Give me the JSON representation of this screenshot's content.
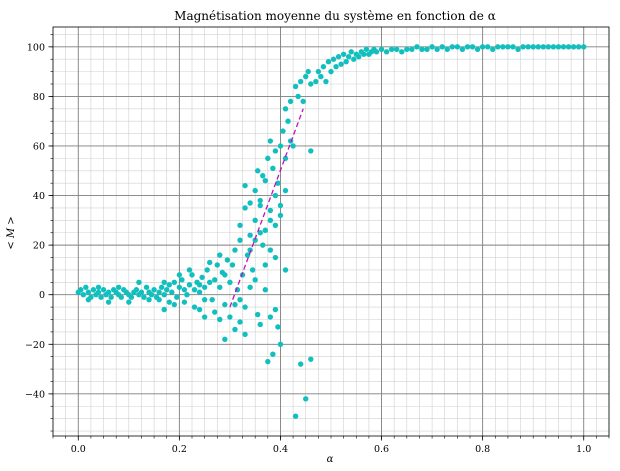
{
  "chart_data": {
    "type": "scatter",
    "title": "Magnétisation moyenne du système en fonction de α",
    "xlabel": "α",
    "ylabel": "< M >",
    "xlim": [
      -0.05,
      1.05
    ],
    "ylim": [
      -57,
      108
    ],
    "xticks": [
      0.0,
      0.2,
      0.4,
      0.6,
      0.8,
      1.0
    ],
    "xtick_labels": [
      "0.0",
      "0.2",
      "0.4",
      "0.6",
      "0.8",
      "1.0"
    ],
    "yticks": [
      -40,
      -20,
      0,
      20,
      40,
      60,
      80,
      100
    ],
    "ytick_labels": [
      "−40",
      "−20",
      "0",
      "20",
      "40",
      "60",
      "80",
      "100"
    ],
    "grid": "major and minor",
    "colors": {
      "points": "#12bfbf",
      "fit_line": "#c010c0",
      "major_grid": "#808080",
      "minor_grid": "#d0d0d0"
    },
    "series": [
      {
        "kind": "scatter",
        "color": "#12bfbf",
        "points": [
          [
            0.0,
            1
          ],
          [
            0.005,
            2
          ],
          [
            0.01,
            0
          ],
          [
            0.015,
            3
          ],
          [
            0.02,
            1
          ],
          [
            0.025,
            -1
          ],
          [
            0.03,
            2
          ],
          [
            0.035,
            0
          ],
          [
            0.04,
            1
          ],
          [
            0.045,
            -1
          ],
          [
            0.05,
            2
          ],
          [
            0.055,
            0
          ],
          [
            0.06,
            1
          ],
          [
            0.065,
            -1
          ],
          [
            0.07,
            2
          ],
          [
            0.075,
            1
          ],
          [
            0.08,
            0
          ],
          [
            0.085,
            -1
          ],
          [
            0.09,
            2
          ],
          [
            0.095,
            1
          ],
          [
            0.1,
            0
          ],
          [
            0.105,
            -1
          ],
          [
            0.11,
            1
          ],
          [
            0.115,
            2
          ],
          [
            0.12,
            0
          ],
          [
            0.125,
            1
          ],
          [
            0.13,
            -1
          ],
          [
            0.135,
            3
          ],
          [
            0.14,
            1
          ],
          [
            0.145,
            0
          ],
          [
            0.15,
            2
          ],
          [
            0.155,
            -1
          ],
          [
            0.16,
            1
          ],
          [
            0.165,
            3
          ],
          [
            0.17,
            0
          ],
          [
            0.175,
            2
          ],
          [
            0.18,
            4
          ],
          [
            0.185,
            1
          ],
          [
            0.19,
            5
          ],
          [
            0.195,
            -1
          ],
          [
            0.2,
            3
          ],
          [
            0.205,
            6
          ],
          [
            0.21,
            2
          ],
          [
            0.215,
            0
          ],
          [
            0.22,
            4
          ],
          [
            0.225,
            8
          ],
          [
            0.23,
            2
          ],
          [
            0.235,
            5
          ],
          [
            0.24,
            1
          ],
          [
            0.245,
            7
          ],
          [
            0.25,
            3
          ],
          [
            0.255,
            10
          ],
          [
            0.26,
            5
          ],
          [
            0.265,
            -2
          ],
          [
            0.27,
            6
          ],
          [
            0.275,
            12
          ],
          [
            0.28,
            3
          ],
          [
            0.285,
            9
          ],
          [
            0.29,
            -4
          ],
          [
            0.295,
            14
          ],
          [
            0.12,
            5
          ],
          [
            0.1,
            -3
          ],
          [
            0.08,
            3
          ],
          [
            0.06,
            -3
          ],
          [
            0.04,
            3
          ],
          [
            0.02,
            -2
          ],
          [
            0.14,
            -2
          ],
          [
            0.16,
            -2
          ],
          [
            0.17,
            5
          ],
          [
            0.18,
            -3
          ],
          [
            0.19,
            -4
          ],
          [
            0.2,
            8
          ],
          [
            0.21,
            -3
          ],
          [
            0.22,
            10
          ],
          [
            0.23,
            -5
          ],
          [
            0.24,
            4
          ],
          [
            0.25,
            -2
          ],
          [
            0.26,
            13
          ],
          [
            0.28,
            16
          ],
          [
            0.29,
            8
          ],
          [
            0.17,
            -6
          ],
          [
            0.24,
            -6
          ],
          [
            0.25,
            -9
          ],
          [
            0.27,
            -7
          ],
          [
            0.28,
            -10
          ],
          [
            0.29,
            -18
          ],
          [
            0.3,
            -9
          ],
          [
            0.31,
            -14
          ],
          [
            0.32,
            -11
          ],
          [
            0.33,
            -16
          ],
          [
            0.3,
            5
          ],
          [
            0.305,
            12
          ],
          [
            0.31,
            18
          ],
          [
            0.315,
            2
          ],
          [
            0.32,
            22
          ],
          [
            0.325,
            8
          ],
          [
            0.33,
            -5
          ],
          [
            0.335,
            16
          ],
          [
            0.34,
            24
          ],
          [
            0.345,
            10
          ],
          [
            0.35,
            30
          ],
          [
            0.355,
            -8
          ],
          [
            0.36,
            36
          ],
          [
            0.365,
            20
          ],
          [
            0.37,
            26
          ],
          [
            0.375,
            -27
          ],
          [
            0.38,
            34
          ],
          [
            0.385,
            -24
          ],
          [
            0.39,
            40
          ],
          [
            0.395,
            -13
          ],
          [
            0.31,
            -4
          ],
          [
            0.32,
            -2
          ],
          [
            0.34,
            3
          ],
          [
            0.35,
            6
          ],
          [
            0.36,
            -12
          ],
          [
            0.37,
            2
          ],
          [
            0.38,
            -9
          ],
          [
            0.39,
            -6
          ],
          [
            0.4,
            -20
          ],
          [
            0.41,
            10
          ],
          [
            0.355,
            50
          ],
          [
            0.365,
            48
          ],
          [
            0.375,
            55
          ],
          [
            0.38,
            62
          ],
          [
            0.385,
            51
          ],
          [
            0.39,
            58
          ],
          [
            0.395,
            45
          ],
          [
            0.4,
            60
          ],
          [
            0.405,
            66
          ],
          [
            0.41,
            75
          ],
          [
            0.415,
            70
          ],
          [
            0.42,
            78
          ],
          [
            0.425,
            60
          ],
          [
            0.43,
            84
          ],
          [
            0.435,
            80
          ],
          [
            0.44,
            86
          ],
          [
            0.445,
            78
          ],
          [
            0.45,
            88
          ],
          [
            0.455,
            90
          ],
          [
            0.46,
            85
          ],
          [
            0.43,
            -49
          ],
          [
            0.44,
            -28
          ],
          [
            0.45,
            -42
          ],
          [
            0.46,
            -26
          ],
          [
            0.46,
            58
          ],
          [
            0.47,
            86
          ],
          [
            0.475,
            90
          ],
          [
            0.48,
            88
          ],
          [
            0.485,
            92
          ],
          [
            0.49,
            86
          ],
          [
            0.495,
            94
          ],
          [
            0.5,
            90
          ],
          [
            0.505,
            95
          ],
          [
            0.51,
            92
          ],
          [
            0.515,
            96
          ],
          [
            0.52,
            93
          ],
          [
            0.525,
            97
          ],
          [
            0.53,
            94
          ],
          [
            0.535,
            96
          ],
          [
            0.54,
            98
          ],
          [
            0.545,
            95
          ],
          [
            0.55,
            97
          ],
          [
            0.555,
            96
          ],
          [
            0.56,
            98
          ],
          [
            0.565,
            97
          ],
          [
            0.57,
            99
          ],
          [
            0.575,
            97
          ],
          [
            0.58,
            98
          ],
          [
            0.585,
            99
          ],
          [
            0.59,
            98
          ],
          [
            0.6,
            99
          ],
          [
            0.61,
            98
          ],
          [
            0.62,
            99
          ],
          [
            0.63,
            99
          ],
          [
            0.64,
            98
          ],
          [
            0.65,
            99
          ],
          [
            0.66,
            99
          ],
          [
            0.67,
            100
          ],
          [
            0.68,
            99
          ],
          [
            0.69,
            99
          ],
          [
            0.7,
            100
          ],
          [
            0.71,
            99
          ],
          [
            0.72,
            100
          ],
          [
            0.73,
            99
          ],
          [
            0.74,
            100
          ],
          [
            0.75,
            100
          ],
          [
            0.76,
            99
          ],
          [
            0.77,
            100
          ],
          [
            0.78,
            100
          ],
          [
            0.79,
            99
          ],
          [
            0.8,
            100
          ],
          [
            0.81,
            100
          ],
          [
            0.82,
            99
          ],
          [
            0.83,
            100
          ],
          [
            0.84,
            100
          ],
          [
            0.85,
            100
          ],
          [
            0.86,
            100
          ],
          [
            0.87,
            99
          ],
          [
            0.88,
            100
          ],
          [
            0.89,
            100
          ],
          [
            0.9,
            100
          ],
          [
            0.91,
            100
          ],
          [
            0.92,
            100
          ],
          [
            0.93,
            100
          ],
          [
            0.94,
            100
          ],
          [
            0.95,
            100
          ],
          [
            0.96,
            100
          ],
          [
            0.97,
            100
          ],
          [
            0.98,
            100
          ],
          [
            0.99,
            100
          ],
          [
            1.0,
            100
          ],
          [
            0.33,
            44
          ],
          [
            0.34,
            37
          ],
          [
            0.35,
            42
          ],
          [
            0.36,
            38
          ],
          [
            0.37,
            46
          ],
          [
            0.38,
            30
          ],
          [
            0.39,
            28
          ],
          [
            0.4,
            32
          ],
          [
            0.41,
            55
          ],
          [
            0.42,
            62
          ],
          [
            0.32,
            28
          ],
          [
            0.33,
            35
          ],
          [
            0.34,
            18
          ],
          [
            0.35,
            22
          ],
          [
            0.36,
            25
          ],
          [
            0.37,
            12
          ],
          [
            0.38,
            18
          ],
          [
            0.39,
            15
          ],
          [
            0.4,
            36
          ],
          [
            0.41,
            42
          ]
        ]
      },
      {
        "kind": "line",
        "style": "dashed",
        "color": "#c010c0",
        "points": [
          [
            0.3,
            -5
          ],
          [
            0.445,
            75
          ]
        ]
      }
    ]
  }
}
